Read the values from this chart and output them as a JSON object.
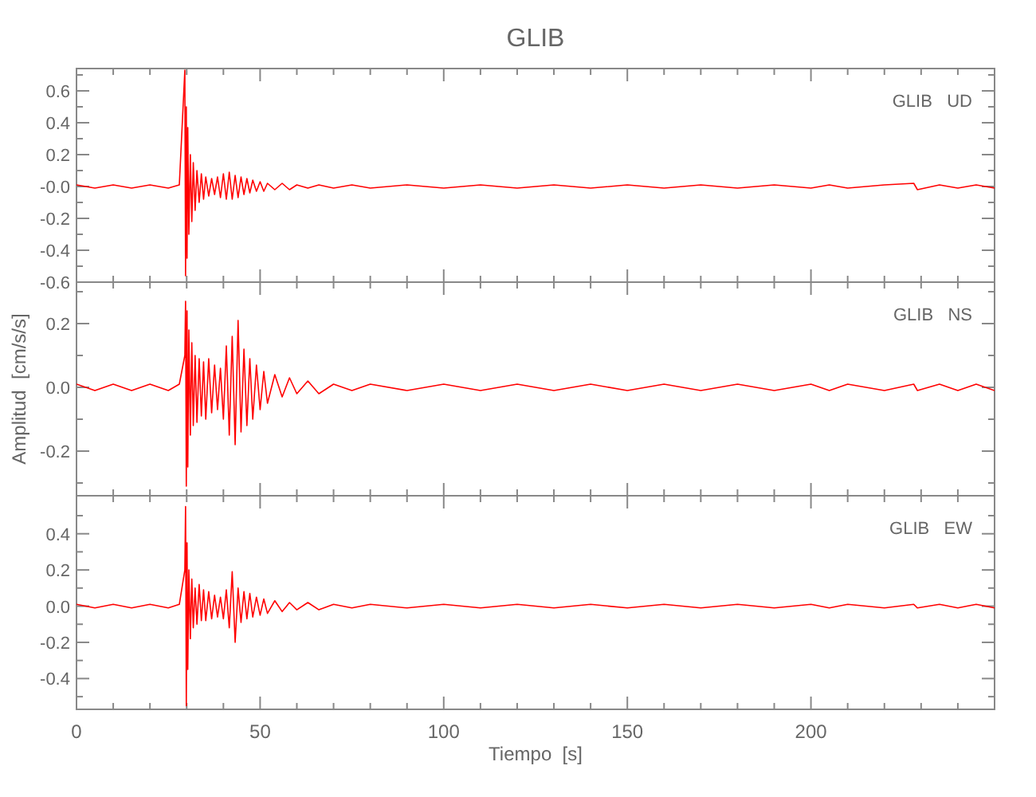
{
  "chart_data": [
    {
      "type": "line",
      "title": "GLIB",
      "annotations": [
        "GLIB   UD"
      ],
      "tick_labels": "y",
      "x": [
        0,
        5,
        10,
        15,
        20,
        25,
        28,
        29.5,
        29.7,
        29.9,
        30.1,
        30.3,
        30.6,
        31,
        31.4,
        31.8,
        32.3,
        32.8,
        33.4,
        34,
        34.6,
        35.2,
        36,
        36.8,
        37.6,
        38.4,
        39.2,
        40,
        40.8,
        41.6,
        42.4,
        43.2,
        44,
        44.8,
        45.6,
        46.4,
        47.2,
        48,
        49,
        50,
        51,
        52,
        54,
        56,
        58,
        60,
        63,
        66,
        70,
        75,
        80,
        90,
        100,
        110,
        120,
        130,
        140,
        150,
        160,
        170,
        180,
        190,
        200,
        205,
        210,
        220,
        228,
        229,
        235,
        240,
        245,
        250
      ],
      "series": [
        {
          "color": "#ff0000",
          "values": [
            0.01,
            -0.01,
            0.01,
            -0.01,
            0.01,
            -0.01,
            0.01,
            0.73,
            -0.56,
            0.5,
            -0.45,
            0.37,
            -0.3,
            0.2,
            -0.22,
            0.15,
            -0.15,
            0.1,
            -0.1,
            0.08,
            -0.08,
            0.06,
            -0.06,
            0.05,
            -0.05,
            0.06,
            -0.07,
            0.08,
            -0.08,
            0.09,
            -0.08,
            0.07,
            -0.07,
            0.06,
            -0.05,
            0.05,
            -0.04,
            0.04,
            -0.03,
            0.03,
            -0.03,
            0.02,
            -0.02,
            0.02,
            -0.02,
            0.01,
            -0.01,
            0.01,
            -0.01,
            0.01,
            -0.01,
            0.01,
            -0.01,
            0.01,
            -0.01,
            0.01,
            -0.01,
            0.01,
            -0.01,
            0.01,
            -0.01,
            0.01,
            -0.01,
            0.01,
            -0.01,
            0.01,
            0.02,
            -0.02,
            0.01,
            -0.01,
            0.01,
            -0.01
          ]
        }
      ],
      "xlim": [
        0,
        250
      ],
      "xticks": [
        0,
        {
          "value": 10,
          "label": null
        },
        {
          "value": 20,
          "label": null
        },
        {
          "value": 30,
          "label": null
        },
        {
          "value": 40,
          "label": null
        },
        50,
        {
          "value": 60,
          "label": null
        },
        {
          "value": 70,
          "label": null
        },
        {
          "value": 80,
          "label": null
        },
        {
          "value": 90,
          "label": null
        },
        100,
        {
          "value": 110,
          "label": null
        },
        {
          "value": 120,
          "label": null
        },
        {
          "value": 130,
          "label": null
        },
        {
          "value": 140,
          "label": null
        },
        150,
        {
          "value": 160,
          "label": null
        },
        {
          "value": 170,
          "label": null
        },
        {
          "value": 180,
          "label": null
        },
        {
          "value": 190,
          "label": null
        },
        200,
        {
          "value": 210,
          "label": null
        },
        {
          "value": 220,
          "label": null
        },
        {
          "value": 230,
          "label": null
        },
        {
          "value": 240,
          "label": null
        }
      ],
      "ylim": [
        -0.6,
        0.74
      ],
      "yticks": [
        {
          "value": -0.6,
          "label": "-0.6"
        },
        {
          "value": -0.5,
          "label": null
        },
        {
          "value": -0.4,
          "label": "-0.4"
        },
        {
          "value": -0.3,
          "label": null
        },
        {
          "value": -0.2,
          "label": "-0.2"
        },
        {
          "value": -0.1,
          "label": null
        },
        {
          "value": 0,
          "label": "-0.0"
        },
        {
          "value": 0.1,
          "label": null
        },
        {
          "value": 0.2,
          "label": "0.2"
        },
        {
          "value": 0.3,
          "label": null
        },
        {
          "value": 0.4,
          "label": "0.4"
        },
        {
          "value": 0.5,
          "label": null
        },
        {
          "value": 0.6,
          "label": "0.6"
        },
        {
          "value": 0.7,
          "label": null
        }
      ]
    },
    {
      "type": "line",
      "annotations": [
        "GLIB   NS"
      ],
      "ylabel": "Amplitud  [cm/s/s]",
      "tick_labels": "y",
      "x": [
        0,
        5,
        10,
        15,
        20,
        25,
        28,
        29.5,
        29.7,
        29.9,
        30.1,
        30.3,
        30.6,
        31,
        31.4,
        31.8,
        32.3,
        32.8,
        33.4,
        34,
        34.6,
        35.2,
        36,
        36.8,
        37.6,
        38.4,
        39.2,
        40,
        40.8,
        41.6,
        42.4,
        43.2,
        44,
        44.8,
        45.6,
        46.4,
        47.2,
        48,
        49,
        50,
        51,
        52,
        54,
        56,
        58,
        60,
        63,
        66,
        70,
        75,
        80,
        90,
        100,
        110,
        120,
        130,
        140,
        150,
        160,
        170,
        180,
        190,
        200,
        205,
        210,
        220,
        228,
        229,
        235,
        240,
        245,
        250
      ],
      "series": [
        {
          "color": "#ff0000",
          "values": [
            0.01,
            -0.01,
            0.01,
            -0.01,
            0.01,
            -0.01,
            0.01,
            0.1,
            0.27,
            -0.31,
            0.24,
            -0.25,
            0.18,
            -0.15,
            0.14,
            -0.12,
            0.1,
            -0.11,
            0.09,
            -0.09,
            0.08,
            -0.1,
            0.09,
            -0.08,
            0.07,
            -0.07,
            0.06,
            -0.1,
            0.13,
            -0.15,
            0.16,
            -0.18,
            0.21,
            -0.14,
            0.12,
            -0.12,
            0.09,
            -0.1,
            0.07,
            -0.07,
            0.05,
            -0.05,
            0.04,
            -0.03,
            0.03,
            -0.02,
            0.02,
            -0.02,
            0.01,
            -0.01,
            0.01,
            -0.01,
            0.01,
            -0.01,
            0.01,
            -0.01,
            0.01,
            -0.01,
            0.01,
            -0.01,
            0.01,
            -0.01,
            0.01,
            -0.01,
            0.01,
            -0.01,
            0.01,
            -0.01,
            0.01,
            -0.01,
            0.01,
            -0.01
          ]
        }
      ],
      "xlim": [
        0,
        250
      ],
      "xticks": [
        0,
        {
          "value": 10,
          "label": null
        },
        {
          "value": 20,
          "label": null
        },
        {
          "value": 30,
          "label": null
        },
        {
          "value": 40,
          "label": null
        },
        50,
        {
          "value": 60,
          "label": null
        },
        {
          "value": 70,
          "label": null
        },
        {
          "value": 80,
          "label": null
        },
        {
          "value": 90,
          "label": null
        },
        100,
        {
          "value": 110,
          "label": null
        },
        {
          "value": 120,
          "label": null
        },
        {
          "value": 130,
          "label": null
        },
        {
          "value": 140,
          "label": null
        },
        150,
        {
          "value": 160,
          "label": null
        },
        {
          "value": 170,
          "label": null
        },
        {
          "value": 180,
          "label": null
        },
        {
          "value": 190,
          "label": null
        },
        200,
        {
          "value": 210,
          "label": null
        },
        {
          "value": 220,
          "label": null
        },
        {
          "value": 230,
          "label": null
        },
        {
          "value": 240,
          "label": null
        }
      ],
      "ylim": [
        -0.34,
        0.33
      ],
      "yticks": [
        {
          "value": -0.3,
          "label": null
        },
        {
          "value": -0.2,
          "label": "-0.2"
        },
        {
          "value": -0.1,
          "label": null
        },
        {
          "value": 0,
          "label": "0.0"
        },
        {
          "value": 0.1,
          "label": null
        },
        {
          "value": 0.2,
          "label": "0.2"
        },
        {
          "value": 0.3,
          "label": null
        }
      ]
    },
    {
      "type": "line",
      "annotations": [
        "GLIB   EW"
      ],
      "xlabel": "Tiempo  [s]",
      "x": [
        0,
        5,
        10,
        15,
        20,
        25,
        28,
        29.5,
        29.7,
        29.9,
        30.1,
        30.3,
        30.6,
        31,
        31.4,
        31.8,
        32.3,
        32.8,
        33.4,
        34,
        34.6,
        35.2,
        36,
        36.8,
        37.6,
        38.4,
        39.2,
        40,
        40.8,
        41.6,
        42.4,
        43.2,
        44,
        44.8,
        45.6,
        46.4,
        47.2,
        48,
        49,
        50,
        51,
        52,
        54,
        56,
        58,
        60,
        63,
        66,
        70,
        75,
        80,
        90,
        100,
        110,
        120,
        130,
        140,
        150,
        160,
        170,
        180,
        190,
        200,
        205,
        210,
        220,
        228,
        229,
        235,
        240,
        245,
        250
      ],
      "series": [
        {
          "color": "#ff0000",
          "values": [
            0.01,
            -0.01,
            0.01,
            -0.01,
            0.01,
            -0.01,
            0.01,
            0.2,
            0.55,
            -0.55,
            0.35,
            -0.35,
            0.2,
            -0.18,
            0.15,
            -0.12,
            0.1,
            -0.1,
            0.12,
            -0.08,
            0.09,
            -0.08,
            0.08,
            -0.07,
            0.06,
            -0.06,
            0.05,
            -0.07,
            0.09,
            -0.12,
            0.19,
            -0.2,
            0.1,
            -0.09,
            0.08,
            -0.07,
            0.07,
            -0.06,
            0.05,
            -0.05,
            0.04,
            -0.04,
            0.03,
            -0.03,
            0.02,
            -0.02,
            0.02,
            -0.02,
            0.01,
            -0.01,
            0.01,
            -0.01,
            0.01,
            -0.01,
            0.01,
            -0.01,
            0.01,
            -0.01,
            0.01,
            -0.01,
            0.01,
            -0.01,
            0.01,
            -0.01,
            0.01,
            -0.01,
            0.01,
            -0.01,
            0.01,
            -0.01,
            0.01,
            -0.01
          ]
        }
      ],
      "xlim": [
        0,
        250
      ],
      "xticks": [
        0,
        {
          "value": 10,
          "label": null
        },
        {
          "value": 20,
          "label": null
        },
        {
          "value": 30,
          "label": null
        },
        {
          "value": 40,
          "label": null
        },
        50,
        {
          "value": 60,
          "label": null
        },
        {
          "value": 70,
          "label": null
        },
        {
          "value": 80,
          "label": null
        },
        {
          "value": 90,
          "label": null
        },
        100,
        {
          "value": 110,
          "label": null
        },
        {
          "value": 120,
          "label": null
        },
        {
          "value": 130,
          "label": null
        },
        {
          "value": 140,
          "label": null
        },
        150,
        {
          "value": 160,
          "label": null
        },
        {
          "value": 170,
          "label": null
        },
        {
          "value": 180,
          "label": null
        },
        {
          "value": 190,
          "label": null
        },
        200,
        {
          "value": 210,
          "label": null
        },
        {
          "value": 220,
          "label": null
        },
        {
          "value": 230,
          "label": null
        },
        {
          "value": 240,
          "label": null
        }
      ],
      "ylim": [
        -0.57,
        0.61
      ],
      "yticks": [
        {
          "value": -0.5,
          "label": null
        },
        {
          "value": -0.4,
          "label": "-0.4"
        },
        {
          "value": -0.3,
          "label": null
        },
        {
          "value": -0.2,
          "label": "-0.2"
        },
        {
          "value": -0.1,
          "label": null
        },
        {
          "value": 0,
          "label": "0.0"
        },
        {
          "value": 0.1,
          "label": null
        },
        {
          "value": 0.2,
          "label": "0.2"
        },
        {
          "value": 0.3,
          "label": null
        },
        {
          "value": 0.4,
          "label": "0.4"
        },
        {
          "value": 0.5,
          "label": null
        }
      ]
    }
  ]
}
